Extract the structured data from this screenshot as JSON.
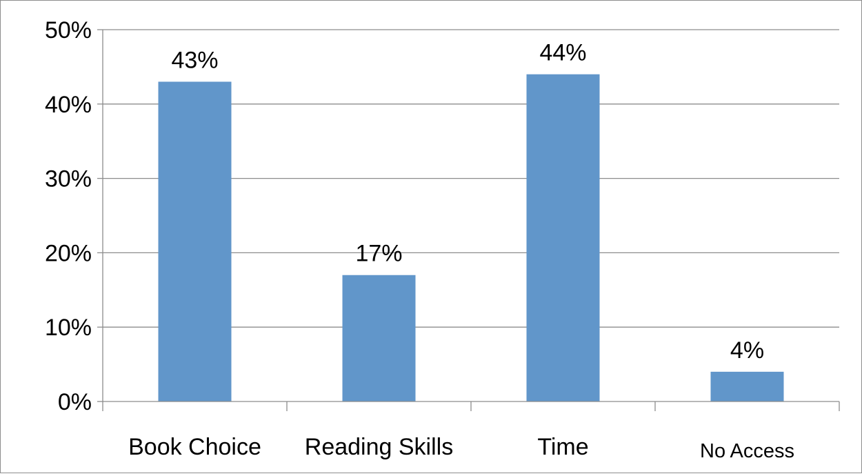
{
  "chart_data": {
    "type": "bar",
    "categories": [
      "Book Choice",
      "Reading Skills",
      "Time",
      "No Access"
    ],
    "values": [
      43,
      17,
      44,
      4
    ],
    "data_labels": [
      "43%",
      "17%",
      "44%",
      "4%"
    ],
    "y_ticks": [
      {
        "value": 0,
        "label": "0%"
      },
      {
        "value": 10,
        "label": "10%"
      },
      {
        "value": 20,
        "label": "20%"
      },
      {
        "value": 30,
        "label": "30%"
      },
      {
        "value": 40,
        "label": "40%"
      },
      {
        "value": 50,
        "label": "50%"
      }
    ],
    "ylim": [
      0,
      50
    ],
    "grid": true,
    "legend": "none",
    "colors": {
      "bar": "#6196ca",
      "grid": "#8c8c8c",
      "axis": "#8c8c8c"
    }
  }
}
